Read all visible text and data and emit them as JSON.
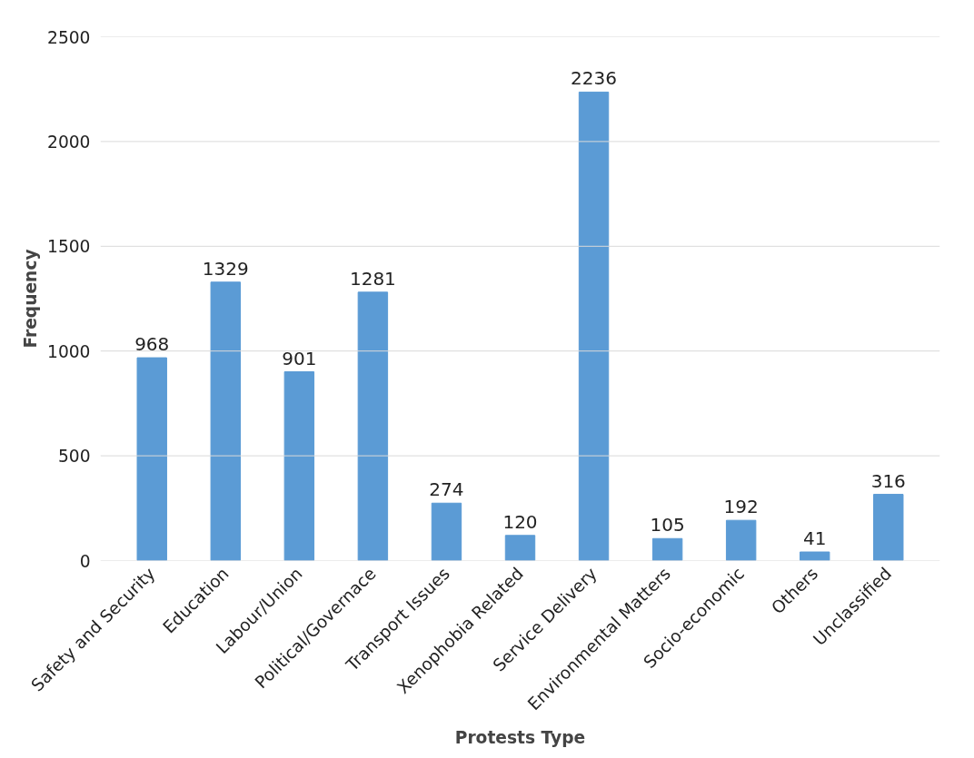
{
  "chart_data": {
    "type": "bar",
    "xlabel": "Protests Type",
    "ylabel": "Frequency",
    "categories": [
      "Safety and Security",
      "Education",
      "Labour/Union",
      "Political/Governace",
      "Transport Issues",
      "Xenophobia Related",
      "Service Delivery",
      "Environmental Matters",
      "Socio-economic",
      "Others",
      "Unclassified"
    ],
    "values": [
      968,
      1329,
      901,
      1281,
      274,
      120,
      2236,
      105,
      192,
      41,
      316
    ],
    "color": "#5b9bd5",
    "ylim": [
      0,
      2500
    ],
    "yticks": [
      0,
      500,
      1000,
      1500,
      2000,
      2500
    ],
    "grid": "y",
    "data_labels": true
  }
}
